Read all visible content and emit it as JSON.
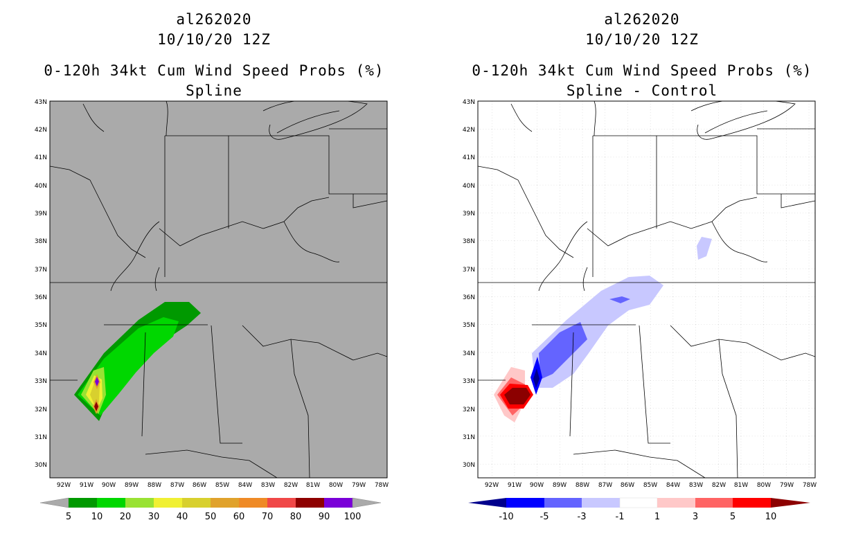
{
  "panels": {
    "left": {
      "title_storm": "al262020",
      "title_time": "10/10/20 12Z",
      "title_product": "0-120h 34kt Cum Wind Speed Probs (%)",
      "title_variant": "Spline",
      "colorbar_labels": [
        "5",
        "10",
        "20",
        "30",
        "40",
        "50",
        "60",
        "70",
        "80",
        "90",
        "100"
      ],
      "colorbar_colors": [
        "#009900",
        "#00d700",
        "#99e233",
        "#f0f033",
        "#d8d02e",
        "#e0a22c",
        "#ef8a26",
        "#f04848",
        "#8e0000",
        "#7a00d8"
      ],
      "background_color": "#aaaaaa"
    },
    "right": {
      "title_storm": "al262020",
      "title_time": "10/10/20 12Z",
      "title_product": "0-120h 34kt Cum Wind Speed Probs (%)",
      "title_variant": "Spline - Control",
      "colorbar_labels": [
        "-10",
        "-5",
        "-3",
        "-1",
        "1",
        "3",
        "5",
        "10"
      ],
      "colorbar_colors": [
        "#00008c",
        "#0000ff",
        "#6464ff",
        "#c8c8ff",
        "#ffffff",
        "#ffc8c8",
        "#ff6464",
        "#ff0000",
        "#8c0000"
      ],
      "background_color": "#ffffff"
    }
  },
  "map_axes": {
    "lat_labels": [
      "30N",
      "31N",
      "32N",
      "33N",
      "34N",
      "35N",
      "36N",
      "37N",
      "38N",
      "39N",
      "40N",
      "41N",
      "42N",
      "43N"
    ],
    "lon_labels": [
      "92W",
      "91W",
      "90W",
      "89W",
      "88W",
      "87W",
      "86W",
      "85W",
      "84W",
      "83W",
      "82W",
      "81W",
      "80W",
      "79W",
      "78W"
    ]
  }
}
